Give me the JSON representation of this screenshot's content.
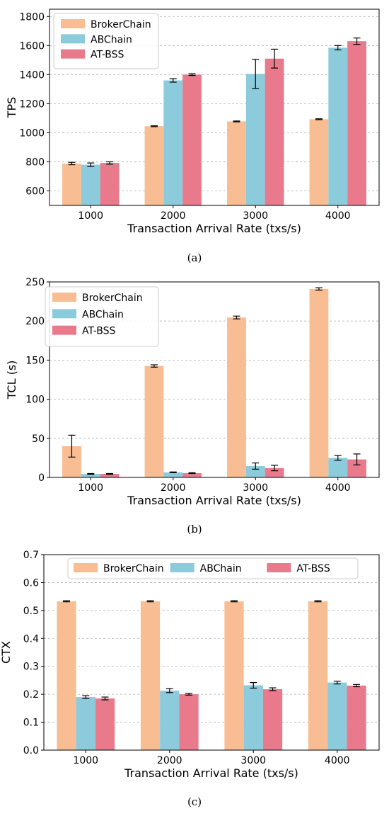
{
  "captions": [
    "(a)",
    "(b)",
    "(c)"
  ],
  "colors": {
    "BrokerChain": "#f9bd93",
    "ABChain": "#8ccbdb",
    "AT-BSS": "#e87a8c"
  },
  "chart_data": [
    {
      "type": "bar",
      "categories": [
        "1000",
        "2000",
        "3000",
        "4000"
      ],
      "xlabel": "Transaction Arrival Rate (txs/s)",
      "ylabel": "TPS",
      "ylim": [
        500,
        1850
      ],
      "yticks": [
        600,
        800,
        1000,
        1200,
        1400,
        1600,
        1800
      ],
      "yticklabels": [
        "600",
        "800",
        "1000",
        "1200",
        "1400",
        "1600",
        "1800"
      ],
      "grid": true,
      "legend": "top-left",
      "series": [
        {
          "name": "BrokerChain",
          "values": [
            788,
            1045,
            1078,
            1093
          ],
          "err": [
            8,
            3,
            3,
            3
          ]
        },
        {
          "name": "ABChain",
          "values": [
            780,
            1360,
            1405,
            1585
          ],
          "err": [
            12,
            12,
            100,
            15
          ]
        },
        {
          "name": "AT-BSS",
          "values": [
            792,
            1400,
            1510,
            1630
          ],
          "err": [
            8,
            6,
            65,
            22
          ]
        }
      ]
    },
    {
      "type": "bar",
      "categories": [
        "1000",
        "2000",
        "3000",
        "4000"
      ],
      "xlabel": "Transaction Arrival Rate (txs/s)",
      "ylabel": "TCL (s)",
      "ylim": [
        0,
        250
      ],
      "yticks": [
        0,
        50,
        100,
        150,
        200,
        250
      ],
      "yticklabels": [
        "0",
        "50",
        "100",
        "150",
        "200",
        "250"
      ],
      "grid": true,
      "legend": "top-left",
      "series": [
        {
          "name": "BrokerChain",
          "values": [
            40,
            142.5,
            204.5,
            241
          ],
          "err": [
            14,
            1.5,
            1.8,
            1.5
          ]
        },
        {
          "name": "ABChain",
          "values": [
            4.5,
            6.5,
            14.5,
            25
          ],
          "err": [
            0.5,
            0.5,
            4,
            3
          ]
        },
        {
          "name": "AT-BSS",
          "values": [
            4.5,
            5.5,
            12,
            23
          ],
          "err": [
            0.5,
            0.5,
            3.5,
            7
          ]
        }
      ]
    },
    {
      "type": "bar",
      "categories": [
        "1000",
        "2000",
        "3000",
        "4000"
      ],
      "xlabel": "Transaction Arrival Rate (txs/s)",
      "ylabel": "CTX",
      "ylim": [
        0,
        0.7
      ],
      "yticks": [
        0,
        0.1,
        0.2,
        0.3,
        0.4,
        0.5,
        0.6,
        0.7
      ],
      "yticklabels": [
        "0.0",
        "0.1",
        "0.2",
        "0.3",
        "0.4",
        "0.5",
        "0.6",
        "0.7"
      ],
      "grid": true,
      "legend": "top-center",
      "series": [
        {
          "name": "BrokerChain",
          "values": [
            0.533,
            0.533,
            0.533,
            0.533
          ],
          "err": [
            0.002,
            0.002,
            0.002,
            0.002
          ]
        },
        {
          "name": "ABChain",
          "values": [
            0.19,
            0.213,
            0.232,
            0.242
          ],
          "err": [
            0.005,
            0.007,
            0.01,
            0.005
          ]
        },
        {
          "name": "AT-BSS",
          "values": [
            0.185,
            0.2,
            0.218,
            0.231
          ],
          "err": [
            0.005,
            0.003,
            0.005,
            0.004
          ]
        }
      ]
    }
  ]
}
